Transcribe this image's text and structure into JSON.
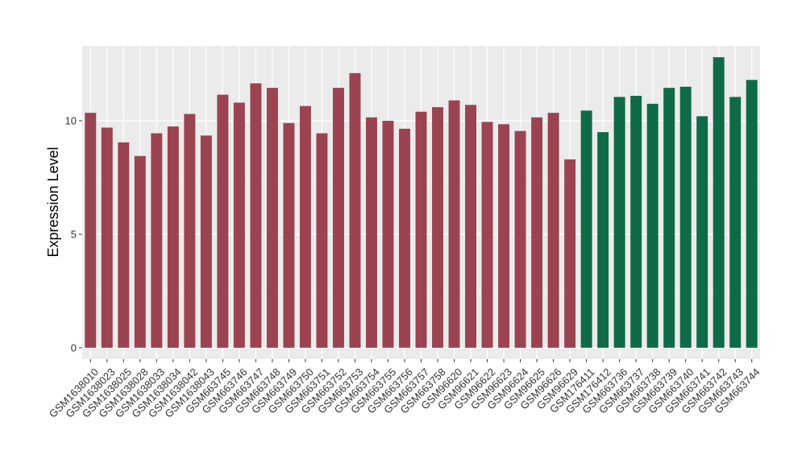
{
  "chart_data": {
    "type": "bar",
    "ylabel": "Expression Level",
    "xlabel": "",
    "title": "",
    "ylim": [
      -0.5,
      13.3
    ],
    "yticks": [
      0,
      5,
      10
    ],
    "grid": true,
    "legend": "none",
    "colors": {
      "group1": "#9b4350",
      "group2": "#0f6b47",
      "panel": "#ebebeb",
      "grid": "#ffffff"
    },
    "categories": [
      "GSM1638010",
      "GSM1638023",
      "GSM1638025",
      "GSM1638028",
      "GSM1638033",
      "GSM1638034",
      "GSM1638042",
      "GSM1638043",
      "GSM663745",
      "GSM663746",
      "GSM663747",
      "GSM663748",
      "GSM663749",
      "GSM663750",
      "GSM663751",
      "GSM663752",
      "GSM663753",
      "GSM663754",
      "GSM663755",
      "GSM663756",
      "GSM663757",
      "GSM663758",
      "GSM96620",
      "GSM96621",
      "GSM96622",
      "GSM96623",
      "GSM96624",
      "GSM96625",
      "GSM96626",
      "GSM96629",
      "GSM176411",
      "GSM176412",
      "GSM663736",
      "GSM663737",
      "GSM663738",
      "GSM663739",
      "GSM663740",
      "GSM663741",
      "GSM663742",
      "GSM663743",
      "GSM663744"
    ],
    "values": [
      10.35,
      9.7,
      9.05,
      8.45,
      9.45,
      9.75,
      10.3,
      9.35,
      11.15,
      10.8,
      11.65,
      11.45,
      9.9,
      10.65,
      9.45,
      11.45,
      12.1,
      10.15,
      10.0,
      9.65,
      10.4,
      10.6,
      10.9,
      10.7,
      9.95,
      9.85,
      9.55,
      10.15,
      10.35,
      8.3,
      10.45,
      9.5,
      11.05,
      11.1,
      10.75,
      11.45,
      11.5,
      10.2,
      12.8,
      11.05,
      11.8
    ],
    "groups": [
      1,
      1,
      1,
      1,
      1,
      1,
      1,
      1,
      1,
      1,
      1,
      1,
      1,
      1,
      1,
      1,
      1,
      1,
      1,
      1,
      1,
      1,
      1,
      1,
      1,
      1,
      1,
      1,
      1,
      1,
      2,
      2,
      2,
      2,
      2,
      2,
      2,
      2,
      2,
      2,
      2
    ]
  }
}
